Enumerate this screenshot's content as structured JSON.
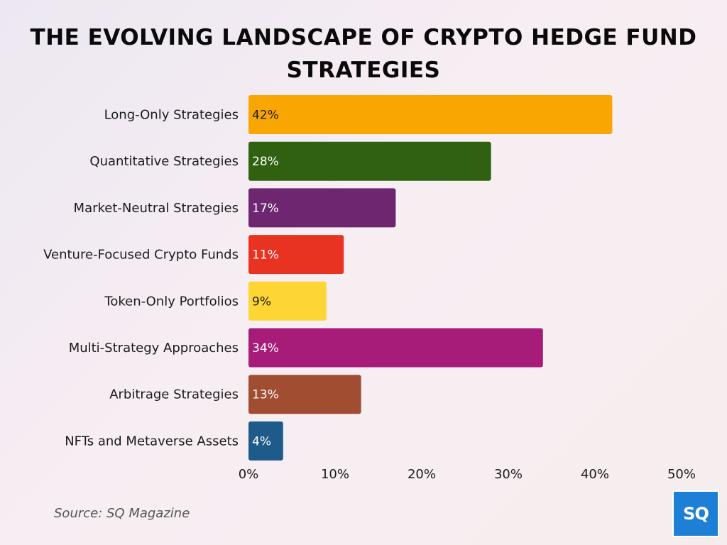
{
  "chart_data": {
    "type": "bar",
    "orientation": "horizontal",
    "title": "THE EVOLVING LANDSCAPE OF CRYPTO HEDGE FUND STRATEGIES",
    "categories": [
      "Long-Only Strategies",
      "Quantitative Strategies",
      "Market-Neutral Strategies",
      "Venture-Focused Crypto Funds",
      "Token-Only Portfolios",
      "Multi-Strategy Approaches",
      "Arbitrage Strategies",
      "NFTs and Metaverse Assets"
    ],
    "values": [
      42,
      28,
      17,
      11,
      9,
      34,
      13,
      4
    ],
    "data_labels": [
      "42%",
      "28%",
      "17%",
      "11%",
      "9%",
      "34%",
      "13%",
      "4%"
    ],
    "colors": [
      "#f9a602",
      "#2f6110",
      "#6e2670",
      "#e83323",
      "#fdd535",
      "#a71c78",
      "#a04d32",
      "#1f5b8a"
    ],
    "label_colors": [
      "#1a1a1a",
      "#ffffff",
      "#ffffff",
      "#ffffff",
      "#1a1a1a",
      "#ffffff",
      "#ffffff",
      "#ffffff"
    ],
    "xlim": [
      0,
      50
    ],
    "xticks": [
      0,
      10,
      20,
      30,
      40,
      50
    ],
    "xtick_labels": [
      "0%",
      "10%",
      "20%",
      "30%",
      "40%",
      "50%"
    ],
    "xlabel": "",
    "ylabel": "",
    "grid": false,
    "legend": "none"
  },
  "source": "Source: SQ Magazine",
  "logo_text": "SQ"
}
